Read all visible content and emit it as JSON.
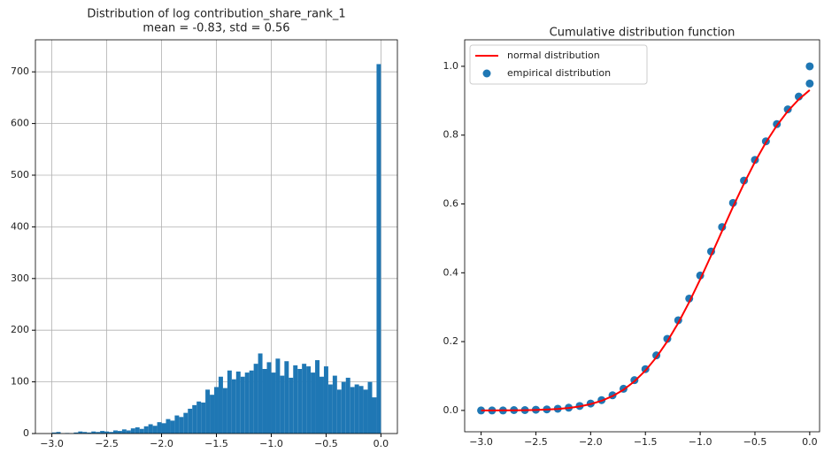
{
  "chart_data": [
    {
      "type": "histogram",
      "title": "Distribution of log contribution_share_rank_1",
      "subtitle": "mean = -0.83, std = 0.56",
      "color": "#1f77b4",
      "grid": true,
      "bins": [
        -3.0,
        -2.96,
        -2.92,
        -2.88,
        -2.84,
        -2.8,
        -2.76,
        -2.72,
        -2.68,
        -2.64,
        -2.6,
        -2.56,
        -2.52,
        -2.48,
        -2.44,
        -2.4,
        -2.36,
        -2.32,
        -2.28,
        -2.24,
        -2.2,
        -2.16,
        -2.12,
        -2.08,
        -2.04,
        -2.0,
        -1.96,
        -1.92,
        -1.88,
        -1.84,
        -1.8,
        -1.76,
        -1.72,
        -1.68,
        -1.64,
        -1.6,
        -1.56,
        -1.52,
        -1.48,
        -1.44,
        -1.4,
        -1.36,
        -1.32,
        -1.28,
        -1.24,
        -1.2,
        -1.16,
        -1.12,
        -1.08,
        -1.04,
        -1.0,
        -0.96,
        -0.92,
        -0.88,
        -0.84,
        -0.8,
        -0.76,
        -0.72,
        -0.68,
        -0.64,
        -0.6,
        -0.56,
        -0.52,
        -0.48,
        -0.44,
        -0.4,
        -0.36,
        -0.32,
        -0.28,
        -0.24,
        -0.2,
        -0.16,
        -0.12,
        -0.08,
        -0.04,
        0.0
      ],
      "values": [
        2,
        3,
        0,
        1,
        0,
        2,
        4,
        3,
        2,
        4,
        3,
        5,
        4,
        3,
        6,
        5,
        8,
        6,
        10,
        12,
        9,
        14,
        18,
        15,
        22,
        20,
        28,
        25,
        35,
        32,
        40,
        48,
        55,
        62,
        60,
        85,
        75,
        90,
        110,
        88,
        122,
        105,
        120,
        110,
        118,
        122,
        135,
        155,
        125,
        138,
        118,
        145,
        112,
        140,
        108,
        132,
        125,
        135,
        130,
        118,
        142,
        110,
        130,
        95,
        112,
        85,
        100,
        108,
        90,
        95,
        92,
        85,
        100,
        70,
        715
      ],
      "xlim": [
        -3.15,
        0.15
      ],
      "ylim": [
        0,
        762
      ],
      "xticks": [
        {
          "value": -3.0,
          "label": "−3.0"
        },
        {
          "value": -2.5,
          "label": "−2.5"
        },
        {
          "value": -2.0,
          "label": "−2.0"
        },
        {
          "value": -1.5,
          "label": "−1.5"
        },
        {
          "value": -1.0,
          "label": "−1.0"
        },
        {
          "value": -0.5,
          "label": "−0.5"
        },
        {
          "value": 0,
          "label": "0.0"
        }
      ],
      "yticks": [
        0,
        100,
        200,
        300,
        400,
        500,
        600,
        700
      ]
    },
    {
      "type": "line",
      "title": "Cumulative distribution function",
      "grid": false,
      "legend": "upper-left",
      "series": [
        {
          "name": "normal distribution",
          "color": "#ff0000",
          "kind": "line",
          "x": [
            -3.0,
            -2.9,
            -2.8,
            -2.7,
            -2.6,
            -2.5,
            -2.4,
            -2.3,
            -2.2,
            -2.1,
            -2.0,
            -1.9,
            -1.8,
            -1.7,
            -1.6,
            -1.5,
            -1.4,
            -1.3,
            -1.2,
            -1.1,
            -1.0,
            -0.9,
            -0.8,
            -0.7,
            -0.6,
            -0.5,
            -0.4,
            -0.3,
            -0.2,
            -0.1,
            0.0
          ],
          "values": [
            0.0,
            0.0001,
            0.0002,
            0.0004,
            0.0008,
            0.0014,
            0.0025,
            0.0043,
            0.0072,
            0.0117,
            0.0183,
            0.028,
            0.0416,
            0.0601,
            0.0846,
            0.1158,
            0.1544,
            0.2007,
            0.2543,
            0.3149,
            0.3807,
            0.4503,
            0.5214,
            0.5918,
            0.6594,
            0.7221,
            0.7787,
            0.828,
            0.8697,
            0.9038,
            0.9309
          ]
        },
        {
          "name": "empirical distribution",
          "color": "#1f77b4",
          "kind": "scatter",
          "x": [
            -3.0,
            -2.9,
            -2.8,
            -2.7,
            -2.6,
            -2.5,
            -2.4,
            -2.3,
            -2.2,
            -2.1,
            -2.0,
            -1.9,
            -1.8,
            -1.7,
            -1.6,
            -1.5,
            -1.4,
            -1.3,
            -1.2,
            -1.1,
            -1.0,
            -0.9,
            -0.8,
            -0.7,
            -0.6,
            -0.5,
            -0.4,
            -0.3,
            -0.2,
            -0.1,
            0.0,
            0.0
          ],
          "values": [
            0.0,
            0.0,
            0.0,
            0.001,
            0.001,
            0.002,
            0.003,
            0.005,
            0.008,
            0.013,
            0.02,
            0.03,
            0.044,
            0.063,
            0.088,
            0.12,
            0.16,
            0.208,
            0.262,
            0.325,
            0.392,
            0.462,
            0.533,
            0.603,
            0.668,
            0.728,
            0.782,
            0.832,
            0.875,
            0.912,
            0.95,
            1.0
          ]
        }
      ],
      "xlim": [
        -3.15,
        0.09
      ],
      "ylim": [
        -0.062,
        1.077
      ],
      "xticks": [
        {
          "value": -3.0,
          "label": "−3.0"
        },
        {
          "value": -2.5,
          "label": "−2.5"
        },
        {
          "value": -2.0,
          "label": "−2.0"
        },
        {
          "value": -1.5,
          "label": "−1.5"
        },
        {
          "value": -1.0,
          "label": "−1.0"
        },
        {
          "value": -0.5,
          "label": "−0.5"
        },
        {
          "value": 0,
          "label": "0.0"
        }
      ],
      "yticks": [
        {
          "value": 0,
          "label": "0.0"
        },
        0.2,
        0.4,
        0.6,
        0.8,
        {
          "value": 1,
          "label": "1.0"
        }
      ]
    }
  ]
}
